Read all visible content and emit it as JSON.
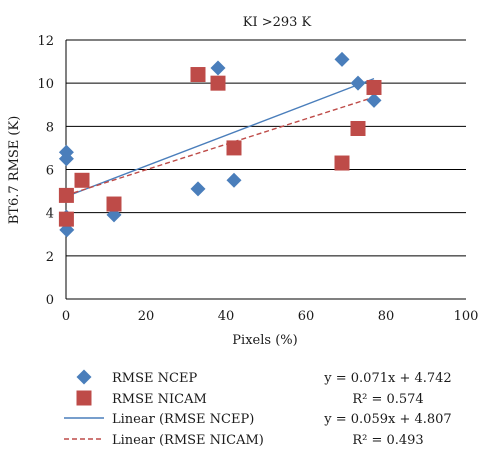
{
  "colors": {
    "ncep": "#4a7ebb",
    "nicam": "#be4b48",
    "grid": "#000000",
    "text": "#1a1a1a"
  },
  "chart_data": {
    "type": "scatter",
    "title": "KI >293 K",
    "xlabel": "Pixels (%)",
    "ylabel": "BT6.7  RMSE (K)",
    "xlim": [
      0,
      100
    ],
    "ylim": [
      0,
      12
    ],
    "x_ticks": [
      "0",
      "20",
      "40",
      "60",
      "80",
      "100"
    ],
    "y_ticks": [
      "0",
      "2",
      "4",
      "6",
      "8",
      "10",
      "12"
    ],
    "grid": "horizontal",
    "legend_placement": "bottom",
    "series": [
      {
        "name": "RMSE NCEP",
        "marker": "diamond",
        "color": "#4a7ebb",
        "points": [
          [
            0.1,
            6.8
          ],
          [
            0.1,
            6.5
          ],
          [
            0.1,
            3.8
          ],
          [
            0.2,
            3.2
          ],
          [
            12,
            3.9
          ],
          [
            33,
            5.1
          ],
          [
            38,
            10.7
          ],
          [
            42,
            5.5
          ],
          [
            69,
            11.1
          ],
          [
            73,
            10.0
          ],
          [
            77,
            9.2
          ]
        ]
      },
      {
        "name": "RMSE NICAM",
        "marker": "square",
        "color": "#be4b48",
        "points": [
          [
            0.1,
            4.8
          ],
          [
            0.1,
            3.7
          ],
          [
            4,
            5.5
          ],
          [
            12,
            4.4
          ],
          [
            33,
            10.4
          ],
          [
            38,
            10.0
          ],
          [
            42,
            7.0
          ],
          [
            69,
            6.3
          ],
          [
            73,
            7.9
          ],
          [
            77,
            9.8
          ]
        ]
      }
    ],
    "trendlines": [
      {
        "name": "Linear (RMSE NCEP)",
        "color": "#4a7ebb",
        "style": "solid",
        "slope": 0.071,
        "intercept": 4.742,
        "x_range": [
          0,
          77
        ],
        "equation": "y = 0.071x + 4.742",
        "r2": "R² = 0.574"
      },
      {
        "name": "Linear (RMSE NICAM)",
        "color": "#be4b48",
        "style": "dashed",
        "slope": 0.059,
        "intercept": 4.807,
        "x_range": [
          0,
          77
        ],
        "equation": "y = 0.059x + 4.807",
        "r2": "R² = 0.493"
      }
    ],
    "legend": [
      {
        "label": "RMSE NCEP",
        "kind": "diamond",
        "color": "#4a7ebb"
      },
      {
        "label": "RMSE NICAM",
        "kind": "square",
        "color": "#be4b48"
      },
      {
        "label": "Linear (RMSE NCEP)",
        "kind": "line-solid",
        "color": "#4a7ebb"
      },
      {
        "label": "Linear (RMSE NICAM)",
        "kind": "line-dashed",
        "color": "#be4b48"
      }
    ]
  }
}
